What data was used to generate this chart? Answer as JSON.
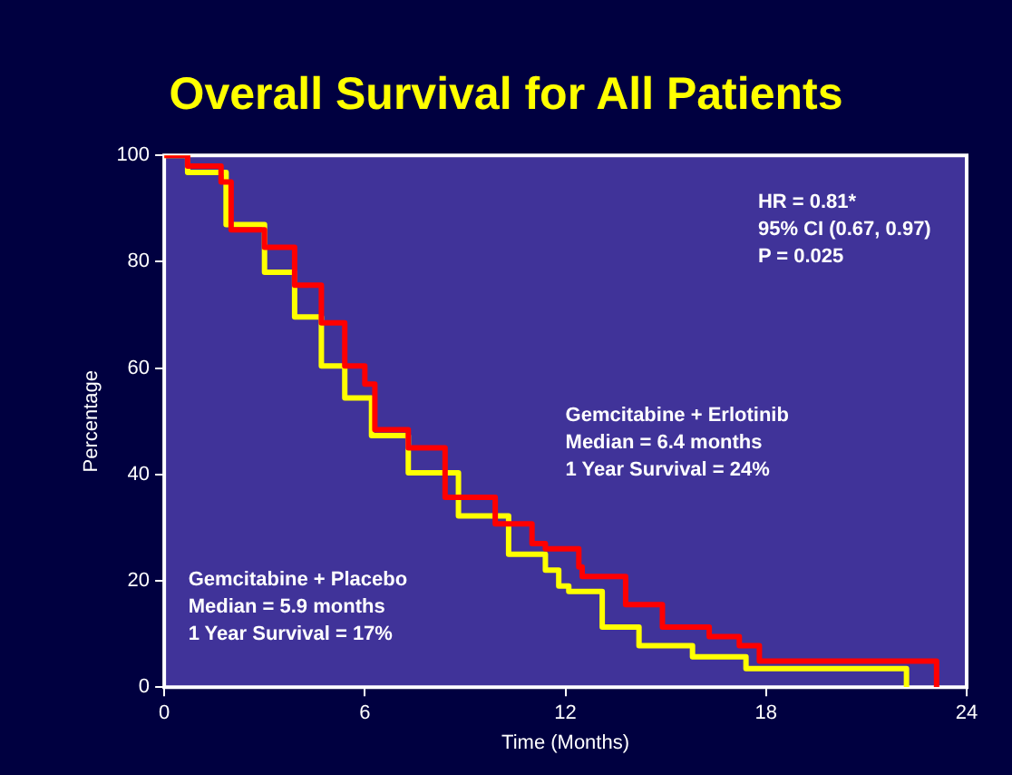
{
  "chart_data": {
    "type": "step",
    "title": "Overall Survival for All Patients",
    "xlabel": "Time (Months)",
    "ylabel": "Percentage",
    "xlim": [
      0,
      24
    ],
    "xticks": [
      0,
      6,
      12,
      18,
      24
    ],
    "ylim": [
      0,
      100
    ],
    "yticks": [
      0,
      20,
      40,
      60,
      80,
      100
    ],
    "grid": false,
    "legend": false,
    "marker": "none",
    "line_style": "solid",
    "series": [
      {
        "color": "#ff0000",
        "x": [
          0,
          0.7,
          1.7,
          2.0,
          3.0,
          3.9,
          4.7,
          5.4,
          6.0,
          6.3,
          7.3,
          8.4,
          9.9,
          11.0,
          11.4,
          12.4,
          12.5,
          13.8,
          14.9,
          16.3,
          17.2,
          17.8,
          23.1
        ],
        "values": [
          100,
          98,
          95,
          86,
          82.7,
          75.6,
          68.5,
          60.4,
          57,
          48.4,
          45,
          35.7,
          30.7,
          27,
          26,
          22.6,
          20.8,
          15.5,
          11.3,
          9.5,
          7.8,
          4.9,
          0
        ]
      },
      {
        "color": "#ffff00",
        "x": [
          0,
          0.7,
          1.85,
          3.0,
          3.9,
          4.7,
          5.4,
          6.2,
          7.3,
          8.8,
          10.3,
          11.4,
          11.8,
          12.1,
          13.1,
          14.2,
          15.8,
          17.4,
          22.2
        ],
        "values": [
          100,
          96.8,
          87,
          78,
          69.6,
          60.4,
          54.4,
          47.3,
          40.3,
          32.2,
          25,
          22,
          19,
          18,
          11.3,
          7.8,
          5.7,
          3.5,
          0
        ]
      }
    ],
    "annotations": [
      "HR = 0.81*\n95% CI (0.67, 0.97)\nP = 0.025",
      "Gemcitabine + Erlotinib\nMedian = 6.4 months\n1 Year Survival = 24%",
      "Gemcitabine + Placebo\nMedian = 5.9 months\n1 Year Survival = 17%"
    ]
  }
}
